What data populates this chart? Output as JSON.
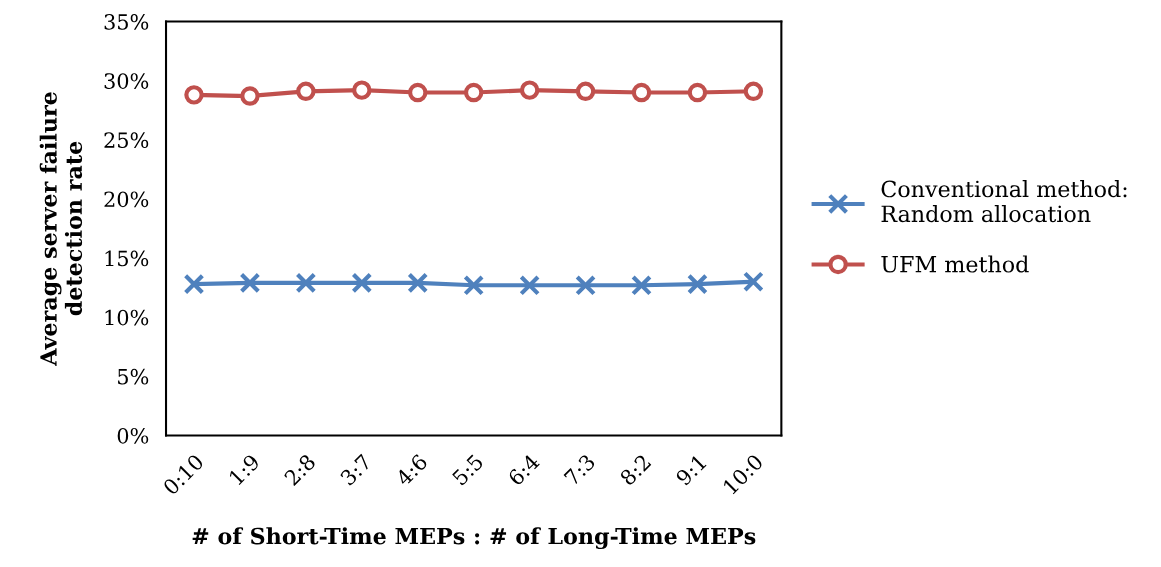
{
  "chart_data": {
    "type": "line",
    "xlabel": "# of Short-Time MEPs : # of Long-Time MEPs",
    "ylabel": "Average server failure\ndetection rate",
    "categories": [
      "0:10",
      "1:9",
      "2:8",
      "3:7",
      "4:6",
      "5:5",
      "6:4",
      "7:3",
      "8:2",
      "9:1",
      "10:0"
    ],
    "series": [
      {
        "name": "Conventional method:\nRandom allocation",
        "color": "#4f81bd",
        "marker": "cross",
        "values": [
          12.8,
          12.9,
          12.9,
          12.9,
          12.9,
          12.7,
          12.7,
          12.7,
          12.7,
          12.8,
          13.0
        ]
      },
      {
        "name": "UFM method",
        "color": "#c0504d",
        "marker": "circle",
        "values": [
          28.8,
          28.7,
          29.1,
          29.2,
          29.0,
          29.0,
          29.2,
          29.1,
          29.0,
          29.0,
          29.1
        ]
      }
    ],
    "ylim": [
      0,
      35
    ],
    "yticks": [
      {
        "value": 0,
        "label": "0%"
      },
      {
        "value": 5,
        "label": "5%"
      },
      {
        "value": 10,
        "label": "10%"
      },
      {
        "value": 15,
        "label": "15%"
      },
      {
        "value": 20,
        "label": "20%"
      },
      {
        "value": 25,
        "label": "25%"
      },
      {
        "value": 30,
        "label": "30%"
      },
      {
        "value": 35,
        "label": "35%"
      }
    ],
    "grid": false,
    "legend": "right",
    "line_style": "solid"
  }
}
